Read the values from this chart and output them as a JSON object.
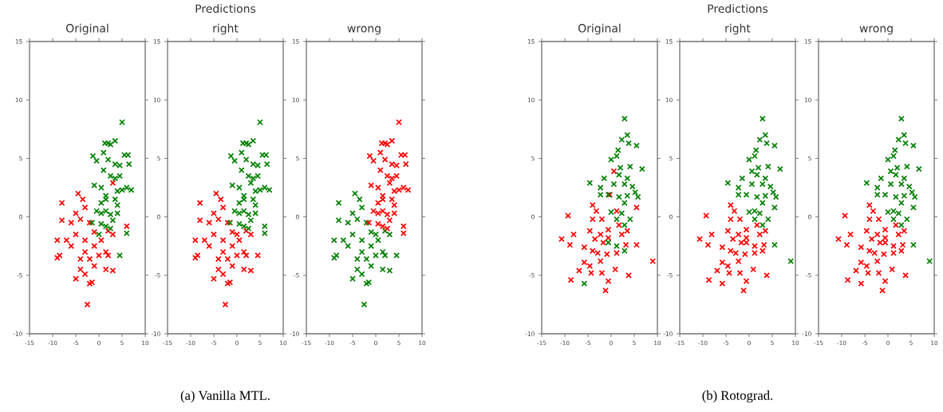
{
  "chart_data": [
    {
      "type": "scatter",
      "title": "Original",
      "xlim": [
        -15,
        10
      ],
      "ylim": [
        -10,
        15
      ],
      "xticks": [
        -15,
        -10,
        -5,
        0,
        5,
        10
      ],
      "yticks": [
        -10,
        -5,
        0,
        5,
        10,
        15
      ],
      "marker": "cross",
      "series": [
        {
          "color": "#ff0000",
          "x": [
            -2.5,
            -2,
            -1.5,
            -5,
            -3,
            -4,
            1.5,
            3,
            -1,
            -8.5,
            -9,
            -4,
            -2,
            0,
            1.5,
            2,
            -7,
            -9,
            -3,
            -5,
            -1,
            0.5,
            2,
            -6,
            -4,
            -2,
            -3,
            -8,
            -3.5,
            -4.5,
            -8,
            3,
            6,
            -5,
            -6,
            -3,
            -1,
            3
          ],
          "values": [
            -7.5,
            -5.7,
            -5.6,
            -5.3,
            -4.9,
            -4.5,
            -4.5,
            -4.6,
            -4.2,
            -3.3,
            -3.5,
            -3.6,
            -3.6,
            -3.3,
            -3,
            -3.3,
            -2,
            -2,
            -2,
            -1.5,
            -1.3,
            -2,
            -1.2,
            -0.5,
            -0.2,
            -0.5,
            0.8,
            -0.3,
            1.5,
            2,
            1.2,
            2.9,
            -0.8,
            0.3,
            -2.5,
            -3,
            -2.5,
            -1.5
          ]
        },
        {
          "color": "#008000",
          "x": [
            5,
            1.3,
            2,
            2.5,
            3.5,
            -1.3,
            1,
            -0.5,
            2,
            3.5,
            4.5,
            5.5,
            6.3,
            6.5,
            1,
            2.5,
            3.5,
            4.5,
            -1,
            0.5,
            1.5,
            4,
            5,
            6,
            7,
            0.5,
            1.5,
            3.5,
            4,
            -0.5,
            0.5,
            1.5,
            2.5,
            3,
            4,
            0.5,
            1.5,
            2.5,
            6,
            4.5,
            0,
            -1.5
          ],
          "values": [
            8.1,
            6.3,
            6.3,
            6.2,
            6.5,
            5.2,
            5.5,
            4.8,
            4.9,
            4.5,
            4.4,
            5.3,
            5.3,
            4.5,
            4,
            3.5,
            3.3,
            3.5,
            2.7,
            2.5,
            1.8,
            2.2,
            2.3,
            2.5,
            2.3,
            1.2,
            1.5,
            1.5,
            1,
            0.5,
            0.3,
            0.5,
            0.2,
            -0.3,
            0.3,
            -0.6,
            -0.8,
            -1,
            -1.4,
            -3.3,
            -1.5,
            -0.5
          ]
        }
      ]
    },
    {
      "type": "scatter",
      "title": "right",
      "xlim": [
        -15,
        10
      ],
      "ylim": [
        -10,
        15
      ],
      "xticks": [
        -15,
        -10,
        -5,
        0,
        5,
        10
      ],
      "yticks": [
        -10,
        -5,
        0,
        5,
        10,
        15
      ],
      "marker": "cross",
      "annotations": [
        "Predictions",
        "(a) Vanilla MTL."
      ],
      "series": [
        {
          "color": "#ff0000",
          "x": [
            -2.5,
            -2,
            -1.5,
            -5,
            -3,
            -4,
            1.5,
            3,
            -1,
            -8.5,
            -9,
            -4,
            -2,
            0,
            1.5,
            2,
            -7,
            -9,
            -3,
            -5,
            -1,
            0.5,
            2,
            -6,
            -4,
            -2,
            -3,
            -8,
            -3.5,
            -4.5,
            -8,
            -5,
            -6,
            -3,
            -1,
            3,
            4.5,
            0
          ],
          "values": [
            -7.5,
            -5.7,
            -5.6,
            -5.3,
            -4.9,
            -4.5,
            -4.5,
            -4.6,
            -4.2,
            -3.3,
            -3.5,
            -3.6,
            -3.6,
            -3.3,
            -3,
            -3.3,
            -2,
            -2,
            -2,
            -1.5,
            -1.3,
            -2,
            -1.2,
            -0.5,
            -0.2,
            -0.5,
            0.8,
            -0.3,
            1.5,
            2,
            1.2,
            0.3,
            -2.5,
            -3,
            -2.5,
            -1.5,
            -3.3,
            -1.5
          ]
        },
        {
          "color": "#008000",
          "x": [
            5,
            1.3,
            2,
            2.5,
            3.5,
            -1.3,
            1,
            -0.5,
            2,
            3.5,
            4.5,
            5.5,
            6.3,
            6.5,
            1,
            2.5,
            3.5,
            4.5,
            -1,
            0.5,
            1.5,
            4,
            5,
            6,
            7,
            0.5,
            1.5,
            3.5,
            4,
            -0.5,
            0.5,
            1.5,
            2.5,
            3,
            4,
            0.5,
            1.5,
            2.5,
            6,
            -1.5,
            3,
            6
          ],
          "values": [
            8.1,
            6.3,
            6.3,
            6.2,
            6.5,
            5.2,
            5.5,
            4.8,
            4.9,
            4.5,
            4.4,
            5.3,
            5.3,
            4.5,
            4,
            3.5,
            3.3,
            3.5,
            2.7,
            2.5,
            1.8,
            2.2,
            2.3,
            2.5,
            2.3,
            1.2,
            1.5,
            1.5,
            1,
            0.5,
            0.3,
            0.5,
            0.2,
            -0.3,
            0.3,
            -0.6,
            -0.8,
            -1,
            -1.4,
            -0.5,
            2.9,
            -0.8
          ]
        }
      ]
    },
    {
      "type": "scatter",
      "title": "wrong",
      "xlim": [
        -15,
        10
      ],
      "ylim": [
        -10,
        15
      ],
      "xticks": [
        -15,
        -10,
        -5,
        0,
        5,
        10
      ],
      "yticks": [
        -10,
        -5,
        0,
        5,
        10,
        15
      ],
      "marker": "cross",
      "series": [
        {
          "color": "#008000",
          "x": [
            -2.5,
            -2,
            -1.5,
            -5,
            -3,
            -4,
            1.5,
            3,
            -1,
            -8.5,
            -9,
            -4,
            -2,
            0,
            1.5,
            2,
            -7,
            -9,
            -3,
            -5,
            -1,
            0.5,
            2,
            -6,
            -4,
            -2,
            -3,
            -8,
            -3.5,
            -4.5,
            -8,
            -5,
            -6,
            -3,
            -1,
            3,
            4.5,
            0
          ],
          "values": [
            -7.5,
            -5.7,
            -5.6,
            -5.3,
            -4.9,
            -4.5,
            -4.5,
            -4.6,
            -4.2,
            -3.3,
            -3.5,
            -3.6,
            -3.6,
            -3.3,
            -3,
            -3.3,
            -2,
            -2,
            -2,
            -1.5,
            -1.3,
            -2,
            -1.2,
            -0.5,
            -0.2,
            -0.5,
            0.8,
            -0.3,
            1.5,
            2,
            1.2,
            0.3,
            -2.5,
            -3,
            -2.5,
            -1.5,
            -3.3,
            -1.5
          ]
        },
        {
          "color": "#ff0000",
          "x": [
            5,
            1.3,
            2,
            2.5,
            3.5,
            -1.3,
            1,
            -0.5,
            2,
            3.5,
            4.5,
            5.5,
            6.3,
            6.5,
            1,
            2.5,
            3.5,
            4.5,
            -1,
            0.5,
            1.5,
            4,
            5,
            6,
            7,
            0.5,
            1.5,
            3.5,
            4,
            -0.5,
            0.5,
            1.5,
            2.5,
            3,
            4,
            0.5,
            1.5,
            2.5,
            6,
            -1.5,
            3,
            6
          ],
          "values": [
            8.1,
            6.3,
            6.3,
            6.2,
            6.5,
            5.2,
            5.5,
            4.8,
            4.9,
            4.5,
            4.4,
            5.3,
            5.3,
            4.5,
            4,
            3.5,
            3.3,
            3.5,
            2.7,
            2.5,
            1.8,
            2.2,
            2.3,
            2.5,
            2.3,
            1.2,
            1.5,
            1.5,
            1,
            0.5,
            0.3,
            0.5,
            0.2,
            -0.3,
            0.3,
            -0.6,
            -0.8,
            -1,
            -1.4,
            -0.5,
            2.9,
            -0.8
          ]
        }
      ]
    },
    {
      "type": "scatter",
      "title": "Original",
      "xlim": [
        -15,
        10
      ],
      "ylim": [
        -10,
        15
      ],
      "xticks": [
        -15,
        -10,
        -5,
        0,
        5,
        10
      ],
      "yticks": [
        -10,
        -5,
        0,
        5,
        10,
        15
      ],
      "marker": "cross",
      "series": [
        {
          "color": "#ff0000",
          "x": [
            0.6,
            -0.3,
            5.5,
            1.2,
            -9.3,
            -4,
            -3.2,
            -4,
            -2,
            -8.1,
            -10.7,
            -8.9,
            -4.6,
            -2.3,
            -0.6,
            1.7,
            3.5,
            -5.8,
            -4,
            -1.7,
            1.2,
            3.2,
            5.5,
            -5.8,
            -4.6,
            -2.3,
            -0.9,
            -6.9,
            -4.3,
            -2,
            0.9,
            3.8,
            -8.7,
            -0.6,
            -1.2,
            9,
            -3.5,
            -2.9,
            -0.6,
            2.3
          ],
          "values": [
            3.9,
            1.9,
            0.8,
            0.5,
            0.1,
            1,
            0.5,
            -0.2,
            -0.2,
            -1.5,
            -1.9,
            -2.4,
            -1.2,
            -1.5,
            -1.1,
            -0.7,
            -1.2,
            -2.6,
            -2.9,
            -2.2,
            -3.1,
            -2.4,
            -2.4,
            -3.9,
            -4.2,
            -3.8,
            -3.2,
            -4.6,
            -4.8,
            -4.8,
            -4.5,
            -5,
            -5.4,
            -5.5,
            -6.3,
            -3.8,
            -1.9,
            -3.1,
            -1.8,
            -1.5
          ]
        },
        {
          "color": "#008000",
          "x": [
            2.9,
            3.5,
            2.3,
            3.8,
            5.5,
            1.5,
            0,
            1.2,
            6.7,
            4.1,
            2,
            -4.6,
            -1.5,
            -2.3,
            0.6,
            2.9,
            4.6,
            5.8,
            1.7,
            -0.6,
            2.9,
            0,
            4.1,
            1.2,
            2.9,
            -0.6,
            1.2,
            2.9,
            -5.8,
            -2.3,
            1.7,
            3.5,
            5.2,
            2.3,
            3.5
          ],
          "values": [
            8.4,
            7,
            6.6,
            6.3,
            6.1,
            5.7,
            4.9,
            5.2,
            4.1,
            4.3,
            4.2,
            2.9,
            3.3,
            2.5,
            2.8,
            2.8,
            2.6,
            1.7,
            1.7,
            1.9,
            1.2,
            0.4,
            -0.2,
            -0.2,
            -0.7,
            -2.2,
            -2.5,
            -2.9,
            -5.7,
            1.9,
            3.6,
            3.3,
            2.1,
            0.3,
            1.8
          ]
        }
      ]
    },
    {
      "type": "scatter",
      "title": "right",
      "xlim": [
        -15,
        10
      ],
      "ylim": [
        -10,
        15
      ],
      "xticks": [
        -15,
        -10,
        -5,
        0,
        5,
        10
      ],
      "yticks": [
        -10,
        -5,
        0,
        5,
        10,
        15
      ],
      "marker": "cross",
      "annotations": [
        "Predictions",
        "(b) Rotograd."
      ],
      "series": [
        {
          "color": "#ff0000",
          "x": [
            -9.3,
            -4,
            -3.2,
            -4,
            -2,
            -8.1,
            -10.7,
            -8.9,
            -4.6,
            -2.3,
            -0.6,
            1.7,
            3.5,
            -5.8,
            -4,
            -1.7,
            1.2,
            3.2,
            -5.8,
            -4.6,
            -2.3,
            -0.9,
            -6.9,
            -4.3,
            -2,
            0.9,
            3.8,
            -8.7,
            -0.6,
            -1.2,
            -3.5,
            -2.9,
            -0.6,
            2.3,
            -0.6,
            1.2,
            2.9,
            -5.8
          ],
          "values": [
            0.1,
            1,
            0.5,
            -0.2,
            -0.2,
            -1.5,
            -1.9,
            -2.4,
            -1.2,
            -1.5,
            -1.1,
            -0.7,
            -1.2,
            -2.6,
            -2.9,
            -2.2,
            -3.1,
            -2.4,
            -3.9,
            -4.2,
            -3.8,
            -3.2,
            -4.6,
            -4.8,
            -4.8,
            -4.5,
            -5,
            -5.4,
            -5.5,
            -6.3,
            -1.9,
            -3.1,
            -1.8,
            -1.5,
            -2.2,
            -2.5,
            -2.9,
            -5.7
          ]
        },
        {
          "color": "#008000",
          "x": [
            2.9,
            3.5,
            2.3,
            3.8,
            5.5,
            1.5,
            0,
            1.2,
            6.7,
            4.1,
            2,
            -4.6,
            -1.5,
            -2.3,
            0.6,
            2.9,
            4.6,
            5.8,
            1.7,
            -0.6,
            2.9,
            0,
            4.1,
            1.2,
            2.9,
            -2.3,
            1.7,
            3.5,
            5.2,
            2.3,
            3.5,
            0.6,
            5.5,
            1.2,
            9,
            5.5
          ],
          "values": [
            8.4,
            7,
            6.6,
            6.3,
            6.1,
            5.7,
            4.9,
            5.2,
            4.1,
            4.3,
            4.2,
            2.9,
            3.3,
            2.5,
            2.8,
            2.8,
            2.6,
            1.7,
            1.7,
            1.9,
            1.2,
            0.4,
            -0.2,
            -0.2,
            -0.7,
            1.9,
            3.6,
            3.3,
            2.1,
            0.3,
            1.8,
            3.9,
            0.8,
            0.5,
            -3.8,
            -2.4
          ]
        }
      ]
    },
    {
      "type": "scatter",
      "title": "wrong",
      "xlim": [
        -15,
        10
      ],
      "ylim": [
        -10,
        15
      ],
      "xticks": [
        -15,
        -10,
        -5,
        0,
        5,
        10
      ],
      "yticks": [
        -10,
        -5,
        0,
        5,
        10,
        15
      ],
      "marker": "cross",
      "series": [
        {
          "color": "#ff0000",
          "x": [
            -9.3,
            -4,
            -3.2,
            -4,
            -2,
            -8.1,
            -10.7,
            -8.9,
            -4.6,
            -2.3,
            -0.6,
            1.7,
            3.5,
            -5.8,
            -4,
            -1.7,
            1.2,
            3.2,
            -5.8,
            -4.6,
            -2.3,
            -0.9,
            -6.9,
            -4.3,
            -2,
            0.9,
            3.8,
            -8.7,
            -0.6,
            -1.2,
            -3.5,
            -2.9,
            -0.6,
            2.3,
            -0.6,
            1.2,
            2.9,
            -5.8
          ],
          "values": [
            0.1,
            1,
            0.5,
            -0.2,
            -0.2,
            -1.5,
            -1.9,
            -2.4,
            -1.2,
            -1.5,
            -1.1,
            -0.7,
            -1.2,
            -2.6,
            -2.9,
            -2.2,
            -3.1,
            -2.4,
            -3.9,
            -4.2,
            -3.8,
            -3.2,
            -4.6,
            -4.8,
            -4.8,
            -4.5,
            -5,
            -5.4,
            -5.5,
            -6.3,
            -1.9,
            -3.1,
            -1.8,
            -1.5,
            -2.2,
            -2.5,
            -2.9,
            -5.7
          ]
        },
        {
          "color": "#008000",
          "x": [
            2.9,
            3.5,
            2.3,
            3.8,
            5.5,
            1.5,
            0,
            1.2,
            6.7,
            4.1,
            2,
            -4.6,
            -1.5,
            -2.3,
            0.6,
            2.9,
            4.6,
            5.8,
            1.7,
            -0.6,
            2.9,
            0,
            4.1,
            1.2,
            2.9,
            -2.3,
            1.7,
            3.5,
            5.2,
            2.3,
            3.5,
            0.6,
            5.5,
            1.2,
            9,
            5.5
          ],
          "values": [
            8.4,
            7,
            6.6,
            6.3,
            6.1,
            5.7,
            4.9,
            5.2,
            4.1,
            4.3,
            4.2,
            2.9,
            3.3,
            2.5,
            2.8,
            2.8,
            2.6,
            1.7,
            1.7,
            1.9,
            1.2,
            0.4,
            -0.2,
            -0.2,
            -0.7,
            1.9,
            3.6,
            3.3,
            2.1,
            0.3,
            1.8,
            3.9,
            0.8,
            0.5,
            -3.8,
            -2.4
          ]
        }
      ]
    }
  ]
}
